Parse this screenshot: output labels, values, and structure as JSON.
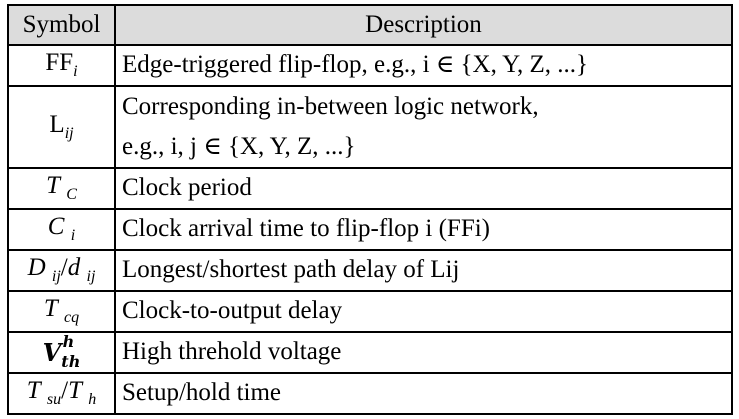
{
  "header": {
    "symbol": "Symbol",
    "description": "Description"
  },
  "rows": [
    {
      "sym_main": "FF",
      "sym_sub": "i",
      "desc": "Edge-triggered flip-flop, e.g., i ∈ {X, Y, Z, ...}"
    },
    {
      "sym_main": "L",
      "sym_sub": "ij",
      "desc_line1": "Corresponding in-between logic network,",
      "desc_line2": "e.g., i, j ∈ {X, Y, Z, ...}"
    },
    {
      "sym_main": "T",
      "sym_sub": "C",
      "desc": "Clock period"
    },
    {
      "sym_main": "C",
      "sym_sub": "i",
      "desc": "Clock arrival time to flip-flop i (FFi)"
    },
    {
      "sym_main": "D",
      "sym_sub": "ij",
      "sym_slash": "/",
      "sym_main2": "d",
      "sym_sub2": "ij",
      "desc": "Longest/shortest path delay of Lij"
    },
    {
      "sym_main": "T",
      "sym_sub": "cq",
      "desc": "Clock-to-output delay"
    },
    {
      "sym_main": "V",
      "sym_sup": "h",
      "sym_sub": "th",
      "desc": "High threhold voltage"
    },
    {
      "sym_main": "T",
      "sym_sub": "su",
      "sym_slash": "/",
      "sym_main2": "T",
      "sym_sub2": "h",
      "desc": "Setup/hold time"
    }
  ]
}
